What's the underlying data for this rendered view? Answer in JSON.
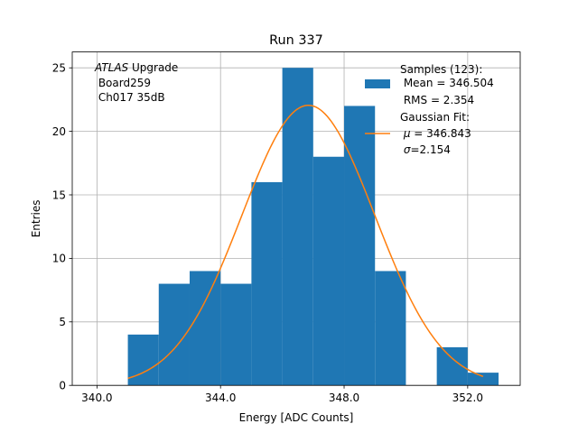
{
  "chart_data": {
    "type": "bar",
    "title": "Run 337",
    "xlabel": "Energy [ADC Counts]",
    "ylabel": "Entries",
    "xlim": [
      339.2,
      353.7
    ],
    "ylim": [
      0,
      26.25
    ],
    "xticks": [
      340.0,
      344.0,
      348.0,
      352.0
    ],
    "xtick_labels": [
      "340.0",
      "344.0",
      "348.0",
      "352.0"
    ],
    "yticks": [
      0,
      5,
      10,
      15,
      20,
      25
    ],
    "ytick_labels": [
      "0",
      "5",
      "10",
      "15",
      "20",
      "25"
    ],
    "grid": true,
    "histogram": {
      "bin_edges": [
        341,
        342,
        343,
        344,
        345,
        346,
        347,
        348,
        349,
        350,
        351,
        352,
        353
      ],
      "counts": [
        4,
        8,
        9,
        8,
        16,
        25,
        18,
        22,
        9,
        0,
        3,
        1
      ],
      "color": "#1f77b4"
    },
    "fit": {
      "amplitude": 22.05,
      "mu": 346.843,
      "sigma": 2.154,
      "x_start": 341.0,
      "x_end": 352.5,
      "color": "#ff7f0e"
    },
    "annotation": {
      "line1_italic": "ATLAS",
      "line1_rest": " Upgrade",
      "line2": " Board259",
      "line3": " Ch017 35dB"
    },
    "legend": {
      "placement": "upper-right",
      "samples_title": "Samples (123):",
      "samples_mean": " Mean = 346.504",
      "samples_rms": " RMS = 2.354",
      "fit_title": "Gaussian Fit:",
      "fit_mu_symbol": "μ",
      "fit_mu_rest": " = 346.843",
      "fit_sigma_symbol": "σ",
      "fit_sigma_rest": "=2.154"
    }
  }
}
